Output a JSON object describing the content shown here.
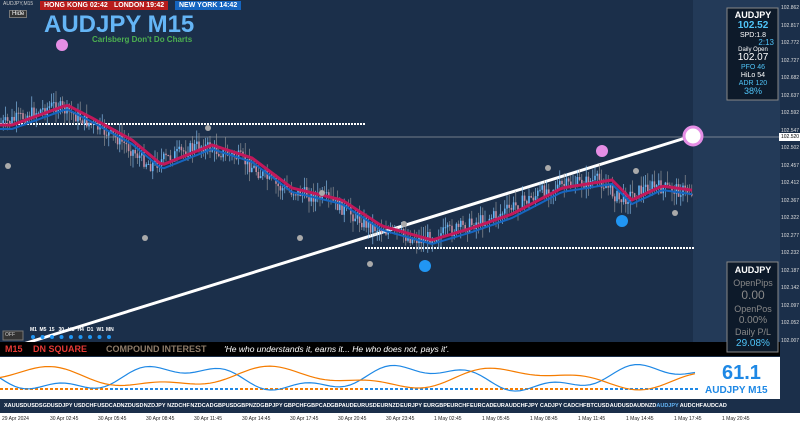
{
  "window": {
    "caption": "AUDJPY,M15",
    "hide": "Hide"
  },
  "clocks": [
    "HONG KONG 02:42",
    "LONDON 19:42",
    "NEW YORK 14:42"
  ],
  "header": {
    "title": "AUDJPY M15",
    "subtitle": "Carlsberg Don't Do Charts"
  },
  "info_panel": {
    "symbol": "AUDJPY",
    "price": "102.52",
    "spread": "SPD:1.8",
    "timer": "2:13",
    "daily_open_label": "Daily Open",
    "daily_open": "102.07",
    "pfo": "PFO  46",
    "hilo": "HiLo  54",
    "adr": "ADR 120",
    "adr_pct": "38%"
  },
  "trade_panel": {
    "symbol": "AUDJPY",
    "open_pips_label": "OpenPips",
    "open_pips": "0.00",
    "open_pos_label": "OpenPos",
    "open_pos": "0.00%",
    "daily_pl_label": "Daily P/L",
    "daily_pl": "29.08%"
  },
  "timeframes": [
    "M1",
    "M5",
    "15",
    "30",
    "H1",
    "H4",
    "D1",
    "W1",
    "MN"
  ],
  "off_button": "OFF",
  "status_bar": {
    "timeframe": "M15",
    "signal": "DN SQUARE",
    "heading": "COMPOUND INTEREST",
    "quote": "'He who understands it, earns it... He who does not, pays it'."
  },
  "indicator": {
    "value": "61.1",
    "label": "AUDJPY M15"
  },
  "symbols": [
    "XAUUSD",
    "USDSGD",
    "USDJPY",
    "USDCHF",
    "USDCAD",
    "NZDUSD",
    "NZDJPY",
    "NZDCHF",
    "NZDCAD",
    "GBPUSD",
    "GBPNZD",
    "GBPJPY",
    "GBPCHF",
    "GBPCAD",
    "GBPAUD",
    "EURUSD",
    "EURNZD",
    "EURJPY",
    "EURGBP",
    "EURCHF",
    "EURCAD",
    "EURAUD",
    "CHFJPY",
    "CADJPY",
    "CADCHF",
    "BTCUSD",
    "AUDUSD",
    "AUDNZD",
    "AUDJPY",
    "AUDCHF",
    "AUDCAD"
  ],
  "price_axis": [
    "102.862",
    "102.817",
    "102.772",
    "102.727",
    "102.682",
    "102.637",
    "102.592",
    "102.547",
    "102.502",
    "102.457",
    "102.412",
    "102.367",
    "102.322",
    "102.277",
    "102.232",
    "102.187",
    "102.142",
    "102.097",
    "102.052",
    "102.007"
  ],
  "current_price": "102.520",
  "time_axis": [
    "29 Apr 2024",
    "30 Apr 02:45",
    "30 Apr 05:45",
    "30 Apr 08:45",
    "30 Apr 11:45",
    "30 Apr 14:45",
    "30 Apr 17:45",
    "30 Apr 20:45",
    "30 Apr 23:45",
    "1 May 02:45",
    "1 May 05:45",
    "1 May 08:45",
    "1 May 11:45",
    "1 May 14:45",
    "1 May 17:45",
    "1 May 20:45"
  ]
}
